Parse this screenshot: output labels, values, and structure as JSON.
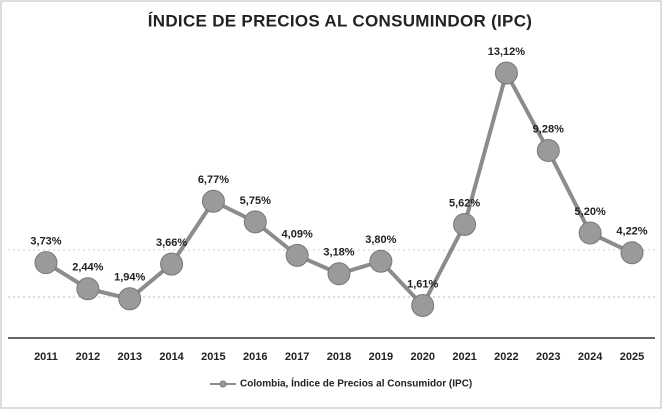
{
  "chart_data": {
    "type": "line",
    "title": "ÍNDICE DE PRECIOS AL CONSUMINDOR (IPC)",
    "categories": [
      "2011",
      "2012",
      "2013",
      "2014",
      "2015",
      "2016",
      "2017",
      "2018",
      "2019",
      "2020",
      "2021",
      "2022",
      "2023",
      "2024",
      "2025"
    ],
    "series": [
      {
        "name": "Colombia, Índice de Precios al Consumidor (IPC)",
        "color": "#8c8c8c",
        "values": [
          3.73,
          2.44,
          1.94,
          3.66,
          6.77,
          5.75,
          4.09,
          3.18,
          3.8,
          1.61,
          5.62,
          13.12,
          9.28,
          5.2,
          4.22
        ],
        "value_labels": [
          "3,73%",
          "2,44%",
          "1,94%",
          "3,66%",
          "6,77%",
          "5,75%",
          "4,09%",
          "3,18%",
          "3,80%",
          "1,61%",
          "5,62%",
          "13,12%",
          "9,28%",
          "5,20%",
          "4,22%"
        ]
      }
    ],
    "ylim": [
      0,
      15
    ]
  }
}
